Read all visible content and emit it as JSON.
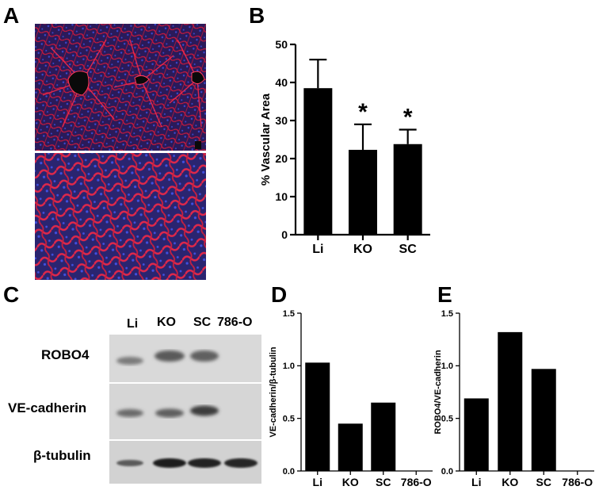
{
  "panels": {
    "a": "A",
    "b": "B",
    "c": "C",
    "d": "D",
    "e": "E"
  },
  "blot": {
    "lanes": [
      "Li",
      "KO",
      "SC",
      "786-O"
    ],
    "rows": [
      {
        "label": "ROBO4"
      },
      {
        "label": "VE-cadherin"
      },
      {
        "label": "β-tubulin"
      }
    ]
  },
  "chart_data": [
    {
      "panel": "B",
      "type": "bar",
      "categories": [
        "Li",
        "KO",
        "SC"
      ],
      "values": [
        38.5,
        22.3,
        23.8
      ],
      "errors": [
        7.5,
        6.7,
        3.8
      ],
      "annotations": [
        "",
        "*",
        "*"
      ],
      "ylabel": "% Vascular Area",
      "ylim": [
        0,
        50
      ],
      "yticks": [
        0,
        10,
        20,
        30,
        40,
        50
      ],
      "color": "#000000"
    },
    {
      "panel": "D",
      "type": "bar",
      "categories": [
        "Li",
        "KO",
        "SC",
        "786-O"
      ],
      "values": [
        1.03,
        0.45,
        0.65,
        0.0
      ],
      "ylabel": "VE-cadherin/β-tubulin",
      "ylim": [
        0,
        1.5
      ],
      "yticks": [
        0.0,
        0.5,
        1.0,
        1.5
      ],
      "ytick_labels": [
        "0.0",
        "0.5",
        "1.0",
        "1.5"
      ],
      "color": "#000000"
    },
    {
      "panel": "E",
      "type": "bar",
      "categories": [
        "Li",
        "KO",
        "SC",
        "786-O"
      ],
      "values": [
        0.69,
        1.32,
        0.97,
        0.0
      ],
      "ylabel": "ROBO4/VE-cadherin",
      "ylim": [
        0,
        1.5
      ],
      "yticks": [
        0.0,
        0.5,
        1.0,
        1.5
      ],
      "ytick_labels": [
        "0.0",
        "0.5",
        "1.0",
        "1.5"
      ],
      "color": "#000000"
    }
  ]
}
